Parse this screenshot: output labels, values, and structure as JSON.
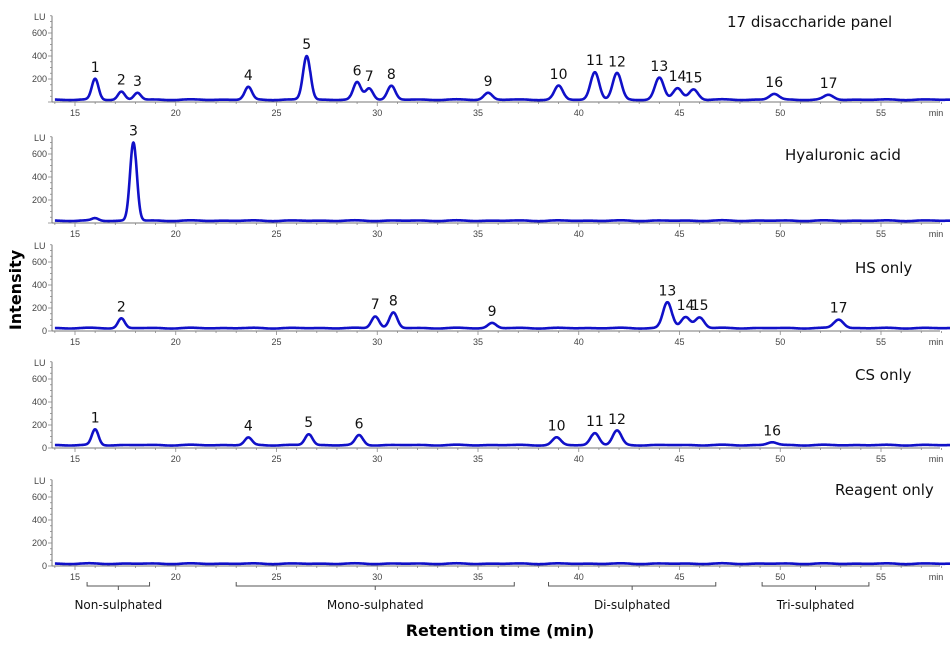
{
  "chart_data": {
    "type": "line",
    "xlabel": "Retention time (min)",
    "ylabel": "Intensity",
    "x_unit": "min",
    "y_unit": "LU",
    "xlim": [
      14,
      58.5
    ],
    "x_ticks": [
      15,
      20,
      25,
      30,
      35,
      40,
      45,
      50,
      55
    ],
    "line_color": "#1010c8",
    "grid": false,
    "panels": [
      {
        "title": "17 disaccharide panel",
        "ylim": [
          0,
          750
        ],
        "y_ticks": [
          200,
          400,
          600
        ],
        "baseline": 20,
        "peaks": [
          {
            "label": "1",
            "rt": 16.0,
            "height": 200
          },
          {
            "label": "2",
            "rt": 17.3,
            "height": 90
          },
          {
            "label": "3",
            "rt": 18.1,
            "height": 80
          },
          {
            "label": "4",
            "rt": 23.6,
            "height": 130
          },
          {
            "label": "5",
            "rt": 26.5,
            "height": 400
          },
          {
            "label": "6",
            "rt": 29.0,
            "height": 170
          },
          {
            "label": "7",
            "rt": 29.6,
            "height": 120
          },
          {
            "label": "8",
            "rt": 30.7,
            "height": 140
          },
          {
            "label": "9",
            "rt": 35.5,
            "height": 80
          },
          {
            "label": "10",
            "rt": 39.0,
            "height": 140
          },
          {
            "label": "11",
            "rt": 40.8,
            "height": 260
          },
          {
            "label": "12",
            "rt": 41.9,
            "height": 250
          },
          {
            "label": "13",
            "rt": 44.0,
            "height": 210
          },
          {
            "label": "14",
            "rt": 44.9,
            "height": 120
          },
          {
            "label": "15",
            "rt": 45.7,
            "height": 110
          },
          {
            "label": "16",
            "rt": 49.7,
            "height": 70
          },
          {
            "label": "17",
            "rt": 52.4,
            "height": 60
          }
        ]
      },
      {
        "title": "Hyaluronic acid",
        "ylim": [
          0,
          750
        ],
        "y_ticks": [
          200,
          400,
          600
        ],
        "baseline": 20,
        "peaks": [
          {
            "label": "",
            "rt": 16.0,
            "height": 40
          },
          {
            "label": "3",
            "rt": 17.9,
            "height": 700
          }
        ]
      },
      {
        "title": "HS only",
        "ylim": [
          0,
          750
        ],
        "y_ticks": [
          0,
          200,
          400,
          600
        ],
        "baseline": 25,
        "peaks": [
          {
            "label": "2",
            "rt": 17.3,
            "height": 110
          },
          {
            "label": "7",
            "rt": 29.9,
            "height": 130
          },
          {
            "label": "8",
            "rt": 30.8,
            "height": 160
          },
          {
            "label": "9",
            "rt": 35.7,
            "height": 70
          },
          {
            "label": "13",
            "rt": 44.4,
            "height": 250
          },
          {
            "label": "14",
            "rt": 45.3,
            "height": 120
          },
          {
            "label": "15",
            "rt": 46.0,
            "height": 120
          },
          {
            "label": "17",
            "rt": 52.9,
            "height": 100
          }
        ]
      },
      {
        "title": "CS only",
        "ylim": [
          0,
          750
        ],
        "y_ticks": [
          0,
          200,
          400,
          600
        ],
        "baseline": 25,
        "peaks": [
          {
            "label": "1",
            "rt": 16.0,
            "height": 160
          },
          {
            "label": "4",
            "rt": 23.6,
            "height": 90
          },
          {
            "label": "5",
            "rt": 26.6,
            "height": 120
          },
          {
            "label": "6",
            "rt": 29.1,
            "height": 110
          },
          {
            "label": "10",
            "rt": 38.9,
            "height": 90
          },
          {
            "label": "11",
            "rt": 40.8,
            "height": 130
          },
          {
            "label": "12",
            "rt": 41.9,
            "height": 150
          },
          {
            "label": "16",
            "rt": 49.6,
            "height": 50
          }
        ]
      },
      {
        "title": "Reagent only",
        "ylim": [
          0,
          750
        ],
        "y_ticks": [
          0,
          200,
          400,
          600
        ],
        "baseline": 20,
        "peaks": []
      }
    ],
    "groups": [
      {
        "label": "Non-sulphated",
        "range": [
          15.6,
          18.7
        ]
      },
      {
        "label": "Mono-sulphated",
        "range": [
          23.0,
          36.8
        ]
      },
      {
        "label": "Di-sulphated",
        "range": [
          38.5,
          46.8
        ]
      },
      {
        "label": "Tri-sulphated",
        "range": [
          49.1,
          54.4
        ]
      }
    ]
  }
}
